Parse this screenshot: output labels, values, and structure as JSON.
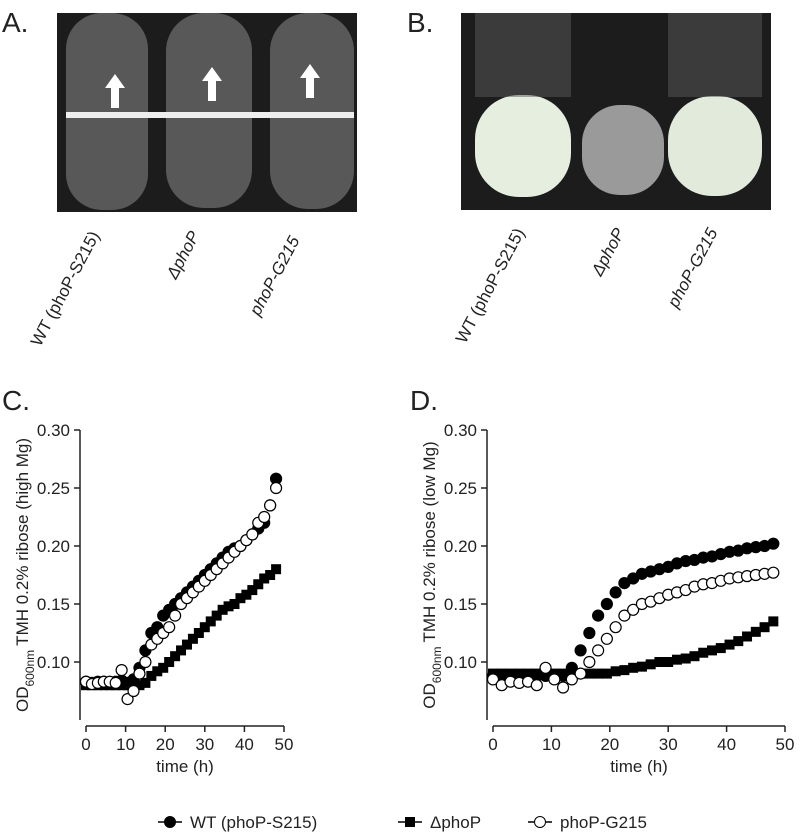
{
  "panels": [
    {
      "panel_label": "A.",
      "tube_labels": [
        "WT (phoP-S215)",
        "ΔphoP",
        "phoP-G215"
      ]
    },
    {
      "panel_label": "B.",
      "tube_labels": [
        "WT (phoP-S215)",
        "ΔphoP",
        "phoP-G215"
      ]
    }
  ],
  "chart_data": [
    {
      "type": "scatter",
      "panel_label": "C.",
      "ylabel_prefix": "OD",
      "ylabel_sub": "600nm",
      "ylabel": "TMH 0.2% ribose (high Mg)",
      "xlabel": "time (h)",
      "x": [
        0,
        1.5,
        3,
        4.5,
        6,
        7.5,
        9,
        10.5,
        12,
        13.5,
        15,
        16.5,
        18,
        19.5,
        21,
        22.5,
        24,
        25.5,
        27,
        28.5,
        30,
        31.5,
        33,
        34.5,
        36,
        37.5,
        39,
        40.5,
        42,
        43.5,
        45,
        46.5,
        48
      ],
      "xlim": [
        0,
        50
      ],
      "xticks": [
        0,
        10,
        20,
        30,
        40,
        50
      ],
      "ylim": [
        0.05,
        0.3
      ],
      "yticks": [
        {
          "value": 0.1,
          "label": "0.10"
        },
        {
          "value": 0.15,
          "label": "0.15"
        },
        {
          "value": 0.2,
          "label": "0.20"
        },
        {
          "value": 0.25,
          "label": "0.25"
        },
        {
          "value": 0.3,
          "label": "0.30"
        }
      ],
      "series": [
        {
          "name": "WT (phoP-S215)",
          "marker": "circle",
          "color": "#000000",
          "values": [
            0.083,
            0.082,
            0.083,
            0.083,
            0.082,
            0.083,
            0.084,
            0.082,
            0.085,
            0.095,
            0.11,
            0.125,
            0.13,
            0.14,
            0.145,
            0.15,
            0.155,
            0.16,
            0.165,
            0.17,
            0.175,
            0.18,
            0.185,
            0.19,
            0.195,
            0.198,
            0.2,
            0.205,
            0.21,
            0.215,
            0.22,
            0.235,
            0.258
          ]
        },
        {
          "name": "ΔphoP",
          "marker": "square",
          "color": "#000000",
          "values": [
            0.08,
            0.08,
            0.08,
            0.08,
            0.08,
            0.08,
            0.08,
            0.08,
            0.08,
            0.08,
            0.082,
            0.088,
            0.092,
            0.095,
            0.1,
            0.105,
            0.11,
            0.115,
            0.12,
            0.125,
            0.13,
            0.135,
            0.14,
            0.145,
            0.148,
            0.15,
            0.155,
            0.158,
            0.162,
            0.167,
            0.172,
            0.175,
            0.18
          ]
        },
        {
          "name": "phoP-G215",
          "marker": "open-circle",
          "color": "#000000",
          "values": [
            0.083,
            0.081,
            0.082,
            0.083,
            0.083,
            0.082,
            0.093,
            0.068,
            0.075,
            0.09,
            0.1,
            0.115,
            0.12,
            0.125,
            0.13,
            0.14,
            0.15,
            0.155,
            0.16,
            0.165,
            0.17,
            0.175,
            0.18,
            0.185,
            0.19,
            0.195,
            0.2,
            0.205,
            0.21,
            0.22,
            0.225,
            0.235,
            0.25
          ]
        }
      ]
    },
    {
      "type": "scatter",
      "panel_label": "D.",
      "ylabel_prefix": "OD",
      "ylabel_sub": "600nm",
      "ylabel": "TMH 0.2% ribose (low Mg)",
      "xlabel": "time (h)",
      "x": [
        0,
        1.5,
        3,
        4.5,
        6,
        7.5,
        9,
        10.5,
        12,
        13.5,
        15,
        16.5,
        18,
        19.5,
        21,
        22.5,
        24,
        25.5,
        27,
        28.5,
        30,
        31.5,
        33,
        34.5,
        36,
        37.5,
        39,
        40.5,
        42,
        43.5,
        45,
        46.5,
        48
      ],
      "xlim": [
        0,
        50
      ],
      "xticks": [
        0,
        10,
        20,
        30,
        40,
        50
      ],
      "ylim": [
        0.05,
        0.3
      ],
      "yticks": [
        {
          "value": 0.1,
          "label": "0.10"
        },
        {
          "value": 0.15,
          "label": "0.15"
        },
        {
          "value": 0.2,
          "label": "0.20"
        },
        {
          "value": 0.25,
          "label": "0.25"
        },
        {
          "value": 0.3,
          "label": "0.30"
        }
      ],
      "series": [
        {
          "name": "WT (phoP-S215)",
          "marker": "circle",
          "color": "#000000",
          "values": [
            0.088,
            0.088,
            0.088,
            0.088,
            0.088,
            0.088,
            0.088,
            0.088,
            0.088,
            0.095,
            0.11,
            0.125,
            0.14,
            0.15,
            0.16,
            0.168,
            0.172,
            0.176,
            0.178,
            0.18,
            0.182,
            0.185,
            0.187,
            0.188,
            0.19,
            0.191,
            0.193,
            0.195,
            0.196,
            0.198,
            0.199,
            0.2,
            0.202
          ]
        },
        {
          "name": "ΔphoP",
          "marker": "square",
          "color": "#000000",
          "values": [
            0.09,
            0.09,
            0.09,
            0.09,
            0.09,
            0.09,
            0.09,
            0.09,
            0.09,
            0.09,
            0.09,
            0.09,
            0.09,
            0.09,
            0.092,
            0.093,
            0.095,
            0.096,
            0.098,
            0.1,
            0.1,
            0.102,
            0.103,
            0.105,
            0.108,
            0.11,
            0.112,
            0.115,
            0.118,
            0.122,
            0.126,
            0.13,
            0.135
          ]
        },
        {
          "name": "phoP-G215",
          "marker": "open-circle",
          "color": "#000000",
          "values": [
            0.085,
            0.08,
            0.083,
            0.082,
            0.083,
            0.08,
            0.095,
            0.085,
            0.078,
            0.085,
            0.09,
            0.1,
            0.11,
            0.12,
            0.13,
            0.14,
            0.145,
            0.15,
            0.152,
            0.155,
            0.158,
            0.16,
            0.162,
            0.165,
            0.167,
            0.168,
            0.17,
            0.172,
            0.173,
            0.174,
            0.175,
            0.176,
            0.177
          ]
        }
      ]
    }
  ]
}
